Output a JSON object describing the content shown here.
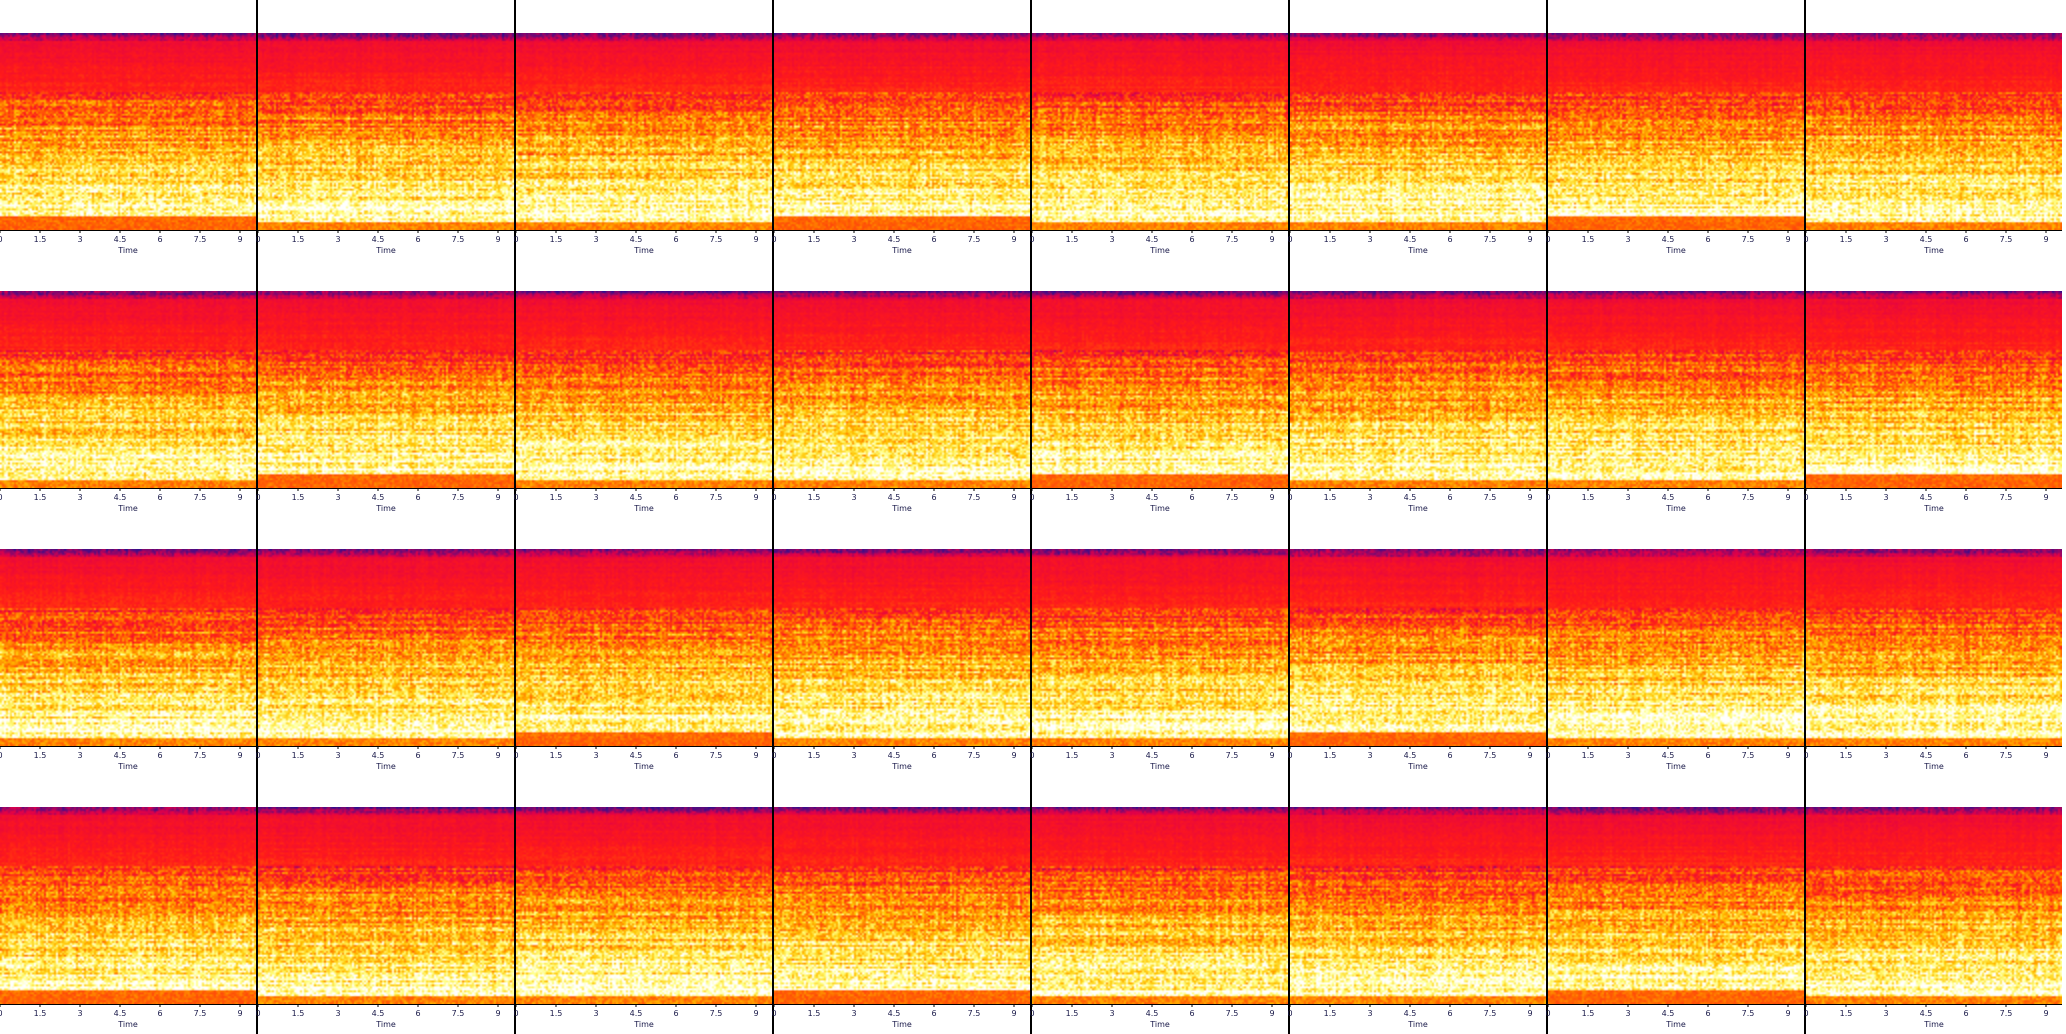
{
  "chart_data": {
    "type": "heatmap",
    "layout": {
      "rows": 4,
      "cols": 8
    },
    "panel_count": 32,
    "xlabel": "Time",
    "xticks": [
      "0",
      "1.5",
      "3",
      "4.5",
      "6",
      "7.5",
      "9"
    ],
    "xlim": [
      0,
      9.6
    ],
    "colormap": [
      "#2a0f8f",
      "#e0004a",
      "#ff1a1a",
      "#ff6a00",
      "#ffc400",
      "#ffff80",
      "#ffffff"
    ],
    "grid": false,
    "legend": "none"
  }
}
